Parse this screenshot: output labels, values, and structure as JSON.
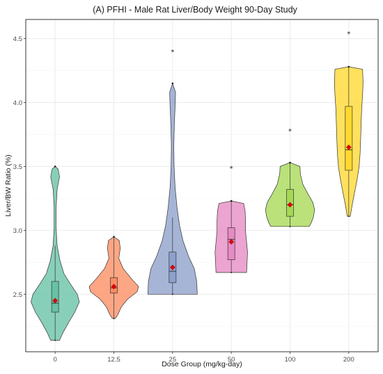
{
  "chart_data": {
    "type": "violin",
    "title": "(A) PFHI - Male Rat Liver/Body Weight 90-Day Study",
    "xlabel": "Dose Group (mg/kg-day)",
    "ylabel": "Liver/BW Ratio (%)",
    "ylim": [
      2.05,
      4.65
    ],
    "yticks": [
      2.5,
      3.0,
      3.5,
      4.0,
      4.5
    ],
    "ytick_labels": [
      "2.5",
      "3.0",
      "3.5",
      "4.0",
      "4.5"
    ],
    "categories": [
      "0",
      "12.5",
      "25",
      "50",
      "100",
      "200"
    ],
    "grid": true,
    "groups": [
      {
        "dose": "0",
        "color": "#66c2a5",
        "violin_min": 2.14,
        "violin_max": 3.5,
        "q1": 2.36,
        "median": 2.43,
        "q3": 2.6,
        "whisker_low": 2.14,
        "whisker_high": 2.88,
        "mean": 2.45,
        "outlier_high": null,
        "profile": [
          [
            2.14,
            0.18
          ],
          [
            2.2,
            0.32
          ],
          [
            2.28,
            0.55
          ],
          [
            2.36,
            0.8
          ],
          [
            2.44,
            0.98
          ],
          [
            2.5,
            0.9
          ],
          [
            2.58,
            0.62
          ],
          [
            2.66,
            0.36
          ],
          [
            2.76,
            0.2
          ],
          [
            2.88,
            0.08
          ],
          [
            3.02,
            0.04
          ],
          [
            3.18,
            0.04
          ],
          [
            3.32,
            0.08
          ],
          [
            3.42,
            0.18
          ],
          [
            3.48,
            0.12
          ],
          [
            3.5,
            0.0
          ]
        ]
      },
      {
        "dose": "12.5",
        "color": "#fc8d62",
        "violin_min": 2.31,
        "violin_max": 2.95,
        "q1": 2.51,
        "median": 2.55,
        "q3": 2.63,
        "whisker_low": 2.31,
        "whisker_high": 2.95,
        "mean": 2.56,
        "outlier_high": null,
        "profile": [
          [
            2.31,
            0.06
          ],
          [
            2.34,
            0.16
          ],
          [
            2.4,
            0.3
          ],
          [
            2.46,
            0.55
          ],
          [
            2.52,
            0.95
          ],
          [
            2.56,
            1.0
          ],
          [
            2.62,
            0.72
          ],
          [
            2.7,
            0.38
          ],
          [
            2.78,
            0.2
          ],
          [
            2.86,
            0.26
          ],
          [
            2.92,
            0.22
          ],
          [
            2.95,
            0.0
          ]
        ]
      },
      {
        "dose": "25",
        "color": "#8da0cb",
        "violin_min": 2.5,
        "violin_max": 4.15,
        "q1": 2.59,
        "median": 2.68,
        "q3": 2.83,
        "whisker_low": 2.5,
        "whisker_high": 3.1,
        "mean": 2.71,
        "outlier_high": 4.4,
        "profile": [
          [
            2.5,
            1.0
          ],
          [
            2.6,
            0.98
          ],
          [
            2.7,
            0.88
          ],
          [
            2.8,
            0.64
          ],
          [
            2.92,
            0.42
          ],
          [
            3.04,
            0.28
          ],
          [
            3.18,
            0.18
          ],
          [
            3.34,
            0.1
          ],
          [
            3.5,
            0.06
          ],
          [
            3.66,
            0.05
          ],
          [
            3.82,
            0.07
          ],
          [
            3.96,
            0.1
          ],
          [
            4.08,
            0.12
          ],
          [
            4.15,
            0.0
          ]
        ]
      },
      {
        "dose": "50",
        "color": "#e78ac3",
        "violin_min": 2.67,
        "violin_max": 3.23,
        "q1": 2.77,
        "median": 2.93,
        "q3": 3.02,
        "whisker_low": 2.67,
        "whisker_high": 3.23,
        "mean": 2.91,
        "outlier_high": 3.49,
        "profile": [
          [
            2.67,
            0.62
          ],
          [
            2.75,
            0.64
          ],
          [
            2.83,
            0.66
          ],
          [
            2.91,
            0.62
          ],
          [
            2.99,
            0.58
          ],
          [
            3.07,
            0.58
          ],
          [
            3.15,
            0.56
          ],
          [
            3.21,
            0.5
          ],
          [
            3.23,
            0.0
          ]
        ]
      },
      {
        "dose": "100",
        "color": "#a6d854",
        "violin_min": 3.03,
        "violin_max": 3.53,
        "q1": 3.11,
        "median": 3.2,
        "q3": 3.32,
        "whisker_low": 3.03,
        "whisker_high": 3.53,
        "mean": 3.2,
        "outlier_high": 3.78,
        "profile": [
          [
            3.03,
            0.78
          ],
          [
            3.06,
            0.86
          ],
          [
            3.1,
            0.94
          ],
          [
            3.16,
            1.0
          ],
          [
            3.22,
            0.92
          ],
          [
            3.28,
            0.74
          ],
          [
            3.36,
            0.52
          ],
          [
            3.44,
            0.42
          ],
          [
            3.5,
            0.4
          ],
          [
            3.53,
            0.0
          ]
        ]
      },
      {
        "dose": "200",
        "color": "#ffd92f",
        "violin_min": 3.11,
        "violin_max": 4.28,
        "q1": 3.47,
        "median": 3.63,
        "q3": 3.97,
        "whisker_low": 3.11,
        "whisker_high": 4.28,
        "mean": 3.65,
        "outlier_high": 4.54,
        "profile": [
          [
            3.11,
            0.06
          ],
          [
            3.2,
            0.14
          ],
          [
            3.3,
            0.24
          ],
          [
            3.4,
            0.34
          ],
          [
            3.5,
            0.42
          ],
          [
            3.6,
            0.46
          ],
          [
            3.7,
            0.48
          ],
          [
            3.82,
            0.5
          ],
          [
            3.94,
            0.52
          ],
          [
            4.06,
            0.56
          ],
          [
            4.16,
            0.58
          ],
          [
            4.26,
            0.56
          ],
          [
            4.28,
            0.0
          ]
        ]
      }
    ]
  }
}
